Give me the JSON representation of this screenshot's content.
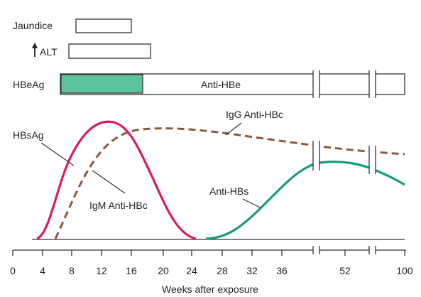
{
  "labels": {
    "jaundice": "Jaundice",
    "alt_arrow": "ALT",
    "hbeag": "HBeAg",
    "anti_hbe": "Anti-HBe",
    "hbsag": "HBsAg",
    "igg_anti_hbc": "IgG Anti-HBc",
    "igm_anti_hbc": "IgM Anti-HBc",
    "anti_hbs": "Anti-HBs"
  },
  "axis": {
    "xlabel": "Weeks after exposure",
    "ticks": [
      "0",
      "4",
      "8",
      "12",
      "16",
      "20",
      "24",
      "28",
      "32",
      "36",
      "52",
      "100"
    ]
  },
  "colors": {
    "hbsag": "#d81b60",
    "igm_anti_hbc": "#8b5a3c",
    "anti_hbs": "#1a9e6e",
    "hbeag_fill": "#5cc49a",
    "line": "#333333"
  },
  "markers": {
    "jaundice_weeks": [
      8,
      16
    ],
    "alt_weeks": [
      7,
      18
    ],
    "hbeag_weeks": [
      6,
      17
    ]
  }
}
